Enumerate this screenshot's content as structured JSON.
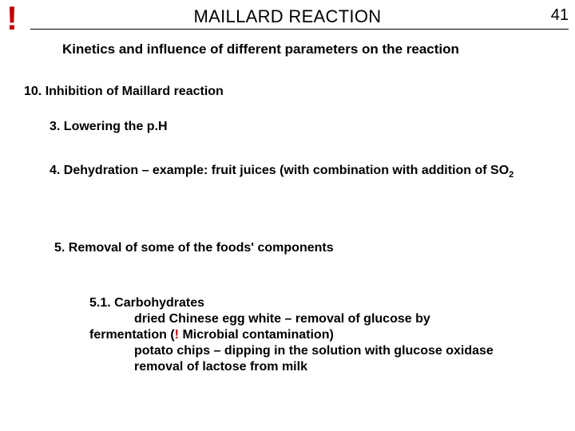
{
  "page_number": "41",
  "bang": "!",
  "title": "MAILLARD REACTION",
  "subhead": "Kinetics and influence of different parameters on the reaction",
  "section10": "10. Inhibition of Maillard reaction",
  "point3": "3. Lowering the p.H",
  "point4_a": "4. Dehydration – example: fruit juices (with combination with addition of SO",
  "point4_sub": "2",
  "point5": "5. Removal of some of the foods' components",
  "p51_head": "5.1. Carbohydrates",
  "p51_l1a": "dried Chinese egg white – removal of glucose by",
  "p51_l2a": "fermentation (",
  "p51_bang": "!",
  "p51_l2b": " Microbial contamination)",
  "p51_l3": "potato chips – dipping in the solution with glucose oxidase",
  "p51_l4": "removal of lactose from milk",
  "colors": {
    "text": "#000000",
    "accent": "#c00000",
    "bg": "#ffffff",
    "rule": "#000000"
  }
}
